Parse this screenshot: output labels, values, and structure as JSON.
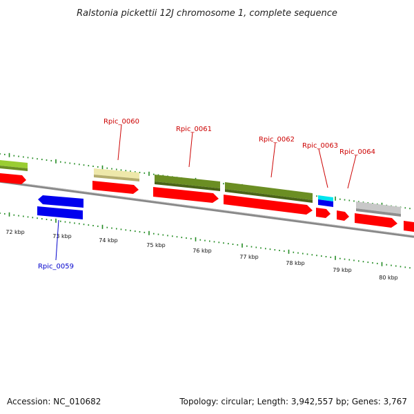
{
  "title": "Ralstonia pickettii 12J chromosome 1, complete sequence",
  "footer": {
    "accession": "Accession: NC_010682",
    "summary": "Topology: circular; Length: 3,942,557 bp; Genes: 3,767"
  },
  "ticks": [
    "72 kbp",
    "73 kbp",
    "74 kbp",
    "75 kbp",
    "76 kbp",
    "77 kbp",
    "78 kbp",
    "79 kbp",
    "80 kbp"
  ],
  "gene_labels": {
    "rpic_0059": "Rpic_0059",
    "rpic_0060": "Rpic_0060",
    "rpic_0061": "Rpic_0061",
    "rpic_0062": "Rpic_0062",
    "rpic_0063": "Rpic_0063",
    "rpic_0064": "Rpic_0064"
  },
  "colors": {
    "forward_label": "#cc0000",
    "reverse_label": "#0000cc",
    "cds": "#ff0000",
    "reverse_gene": "#0000ee",
    "olive": "#6b8e23",
    "khaki": "#eee8aa",
    "cyan": "#00e5ee",
    "gray": "#c8c8c8",
    "lime": "#9acd32",
    "tick": "#228b22",
    "backbone": "#888888"
  }
}
